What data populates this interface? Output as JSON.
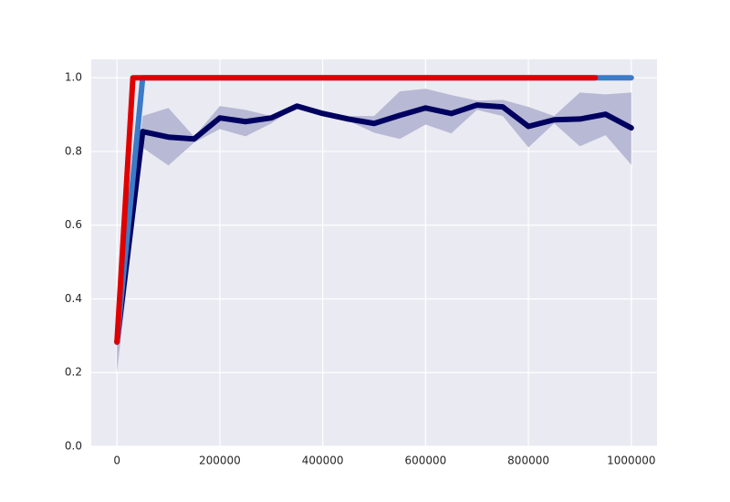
{
  "chart_data": {
    "type": "line",
    "xlim": [
      -50000,
      1050000
    ],
    "ylim": [
      0,
      1.05
    ],
    "xticks": [
      0,
      200000,
      400000,
      600000,
      800000,
      1000000
    ],
    "yticks": [
      {
        "value": 0,
        "label": "0.0"
      },
      0.2,
      0.4,
      0.6,
      0.8,
      {
        "value": 1,
        "label": "1.0"
      }
    ],
    "grid": true,
    "background": "#eaeaf2",
    "series": [
      {
        "color": "#000060",
        "band_color": "#b8b9d5",
        "x": [
          0,
          50000,
          100000,
          150000,
          200000,
          250000,
          300000,
          350000,
          400000,
          450000,
          500000,
          550000,
          600000,
          650000,
          700000,
          750000,
          800000,
          850000,
          900000,
          950000,
          1000000
        ],
        "values": [
          0.283,
          0.854,
          0.839,
          0.834,
          0.891,
          0.881,
          0.891,
          0.923,
          0.903,
          0.888,
          0.876,
          0.898,
          0.918,
          0.903,
          0.926,
          0.921,
          0.868,
          0.886,
          0.888,
          0.901,
          0.864
        ],
        "upper": [
          0.3,
          0.896,
          0.918,
          0.84,
          0.923,
          0.913,
          0.896,
          0.923,
          0.908,
          0.896,
          0.896,
          0.963,
          0.97,
          0.953,
          0.938,
          0.94,
          0.921,
          0.896,
          0.96,
          0.955,
          0.96
        ],
        "lower": [
          0.2,
          0.81,
          0.762,
          0.824,
          0.861,
          0.841,
          0.876,
          0.923,
          0.898,
          0.883,
          0.851,
          0.834,
          0.873,
          0.849,
          0.913,
          0.896,
          0.811,
          0.876,
          0.814,
          0.844,
          0.764
        ]
      },
      {
        "color": "#3b7bc8",
        "x": [
          0,
          50000,
          1000000
        ],
        "values": [
          0.283,
          1,
          1
        ]
      },
      {
        "color": "#e00000",
        "x": [
          0,
          31000,
          930000
        ],
        "values": [
          0.283,
          1,
          1
        ]
      }
    ]
  }
}
